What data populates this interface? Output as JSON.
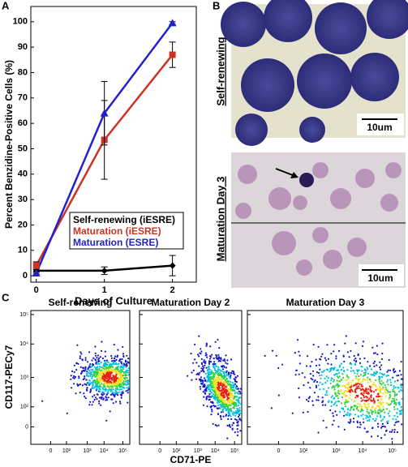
{
  "panel_labels": [
    "A",
    "B",
    "C"
  ],
  "chart_data": {
    "type": "line",
    "xlabel": "Days of Culture",
    "ylabel": "Percent Benzidine-Positive Cells (%)",
    "x": [
      0,
      1,
      2
    ],
    "xlim": [
      -0.08,
      2.35
    ],
    "ylim": [
      -2.5,
      106
    ],
    "xticks": [
      0,
      1,
      2
    ],
    "yticks": [
      0,
      10,
      20,
      30,
      40,
      50,
      60,
      70,
      80,
      90,
      100
    ],
    "series": [
      {
        "name": "Self-renewing (iESRE)",
        "color": "#000000",
        "marker": "diamond",
        "values": [
          2,
          2,
          4
        ],
        "errors": [
          1,
          1.5,
          4
        ]
      },
      {
        "name": "Maturation (iESRE)",
        "color": "#cc3322",
        "marker": "square",
        "values": [
          4,
          53.5,
          87
        ],
        "errors": [
          1.5,
          15.5,
          5
        ]
      },
      {
        "name": "Maturation (ESRE)",
        "color": "#2222cc",
        "marker": "triangle",
        "values": [
          1,
          64,
          99.5
        ],
        "errors": [
          0.5,
          12.5,
          0.5
        ]
      }
    ]
  },
  "micrographs": [
    {
      "label": "Self-renewing",
      "scale_bar": "10um"
    },
    {
      "label": "Maturation Day 3",
      "scale_bar": "10um"
    }
  ],
  "flow": {
    "xlabel": "CD71-PE",
    "ylabel": "CD117-PECy7",
    "xticks": [
      "0",
      "10²",
      "10³",
      "10⁴",
      "10⁵"
    ],
    "yticks": [
      "0",
      "10²",
      "10³",
      "10⁴",
      "10⁵"
    ],
    "plots": [
      {
        "title": "Self-renewing"
      },
      {
        "title": "Maturation Day 2"
      },
      {
        "title": "Maturation Day 3"
      }
    ]
  }
}
